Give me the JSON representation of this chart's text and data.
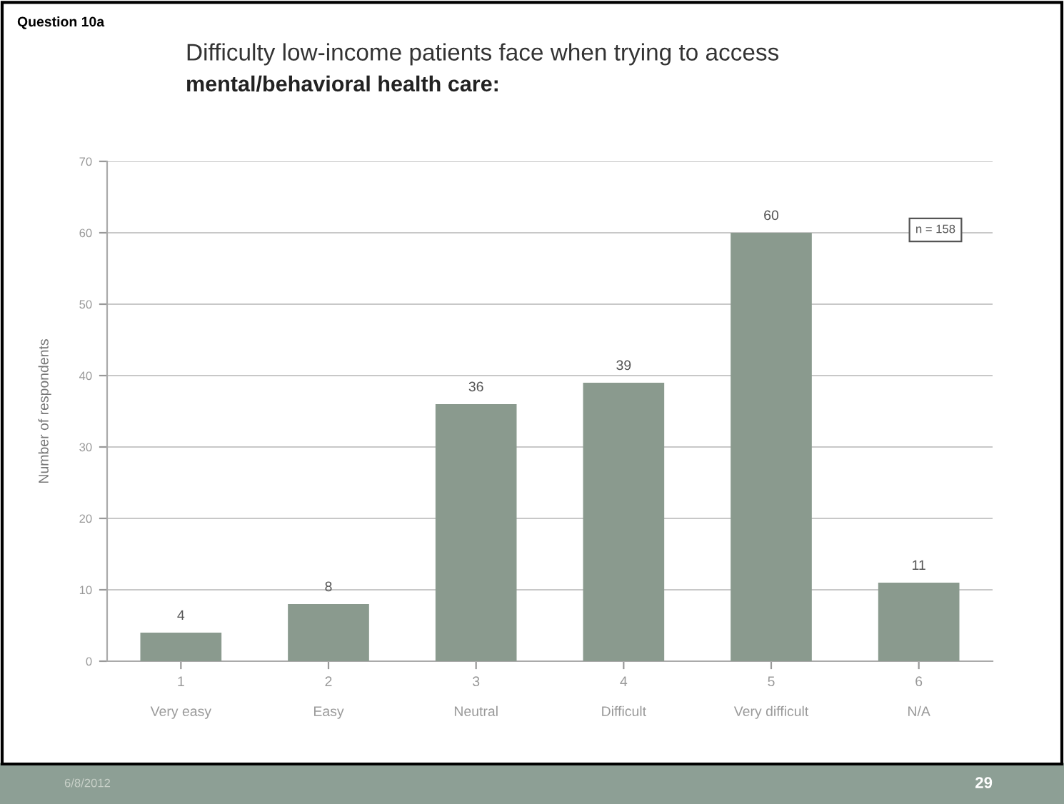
{
  "chart_data": {
    "type": "bar",
    "title": "Difficulty low-income patients face when trying to access",
    "subtitle": "mental/behavioral health care:",
    "ylabel": "Number of respondents",
    "categories": [
      "1\n\nVery easy",
      "2\n\nEasy",
      "3\n\nNeutral",
      "4\n\nDifficult",
      "5\n\nVery difficult",
      "6\n\nN/A"
    ],
    "values": [
      4,
      8,
      36,
      39,
      60,
      11
    ],
    "color": "#8a9a8e",
    "data_labels": true,
    "ylim": [
      0,
      70
    ],
    "yticks": [
      0,
      10,
      20,
      30,
      40,
      50,
      60,
      70
    ],
    "grid": "y",
    "annotations": [
      "Question 10a",
      "n = 158",
      "6/8/2012",
      "29"
    ]
  }
}
